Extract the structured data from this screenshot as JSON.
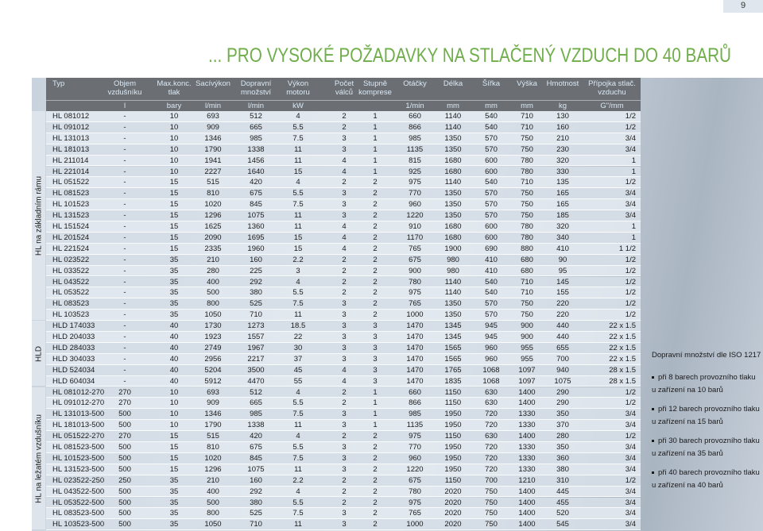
{
  "header": {
    "page_number": "9",
    "title": "... PRO VYSOKÉ POŽADAVKY NA STLAČENÝ VZDUCH DO 40 BARŮ"
  },
  "table": {
    "columns": [
      {
        "name": [
          "Typ"
        ]
      },
      {
        "name": [
          "Objem",
          "vzdušníku"
        ],
        "unit": "l"
      },
      {
        "name": [
          "Max.konc.",
          "tlak"
        ],
        "unit": "bary"
      },
      {
        "name": [
          "Sacívýkon"
        ],
        "unit": "l/min"
      },
      {
        "name": [
          "Dopravní",
          "množství"
        ],
        "unit": "l/min"
      },
      {
        "name": [
          "Výkon",
          "motoru"
        ],
        "unit": "kW"
      },
      {
        "name": [
          "Počet",
          "válců"
        ]
      },
      {
        "name": [
          "Stupně",
          "komprese"
        ]
      },
      {
        "name": [
          "Otáčky"
        ],
        "unit": "1/min"
      },
      {
        "name": [
          "Délka"
        ],
        "unit": "mm"
      },
      {
        "name": [
          "Šířka"
        ],
        "unit": "mm"
      },
      {
        "name": [
          "Výška"
        ],
        "unit": "mm"
      },
      {
        "name": [
          "Hmotnost"
        ],
        "unit": "kg"
      },
      {
        "name": [
          "Přípojka stlač.",
          "vzduchu"
        ],
        "unit": "G\"/mm"
      }
    ],
    "groups": [
      {
        "label": "HL na základním rámu",
        "rows": [
          [
            "HL 081012",
            "-",
            "10",
            "693",
            "512",
            "4",
            "2",
            "1",
            "660",
            "1140",
            "540",
            "710",
            "130",
            "1/2"
          ],
          [
            "HL 091012",
            "-",
            "10",
            "909",
            "665",
            "5.5",
            "2",
            "1",
            "866",
            "1140",
            "540",
            "710",
            "160",
            "1/2"
          ],
          [
            "HL 131013",
            "-",
            "10",
            "1346",
            "985",
            "7.5",
            "3",
            "1",
            "985",
            "1350",
            "570",
            "750",
            "210",
            "3/4"
          ],
          [
            "HL 181013",
            "-",
            "10",
            "1790",
            "1338",
            "11",
            "3",
            "1",
            "1135",
            "1350",
            "570",
            "750",
            "230",
            "3/4"
          ],
          [
            "HL 211014",
            "-",
            "10",
            "1941",
            "1456",
            "11",
            "4",
            "1",
            "815",
            "1680",
            "600",
            "780",
            "320",
            "1"
          ],
          [
            "HL 221014",
            "-",
            "10",
            "2227",
            "1640",
            "15",
            "4",
            "1",
            "925",
            "1680",
            "600",
            "780",
            "330",
            "1"
          ],
          [
            "HL 051522",
            "-",
            "15",
            "515",
            "420",
            "4",
            "2",
            "2",
            "975",
            "1140",
            "540",
            "710",
            "135",
            "1/2"
          ],
          [
            "HL 081523",
            "-",
            "15",
            "810",
            "675",
            "5.5",
            "3",
            "2",
            "770",
            "1350",
            "570",
            "750",
            "165",
            "3/4"
          ],
          [
            "HL 101523",
            "-",
            "15",
            "1020",
            "845",
            "7.5",
            "3",
            "2",
            "960",
            "1350",
            "570",
            "750",
            "165",
            "3/4"
          ],
          [
            "HL 131523",
            "-",
            "15",
            "1296",
            "1075",
            "11",
            "3",
            "2",
            "1220",
            "1350",
            "570",
            "750",
            "185",
            "3/4"
          ],
          [
            "HL 151524",
            "-",
            "15",
            "1625",
            "1360",
            "11",
            "4",
            "2",
            "910",
            "1680",
            "600",
            "780",
            "320",
            "1"
          ],
          [
            "HL 201524",
            "-",
            "15",
            "2090",
            "1695",
            "15",
            "4",
            "2",
            "1170",
            "1680",
            "600",
            "780",
            "340",
            "1"
          ],
          [
            "HL 221524",
            "-",
            "15",
            "2335",
            "1960",
            "15",
            "4",
            "2",
            "765",
            "1900",
            "690",
            "880",
            "410",
            "1 1/2"
          ],
          [
            "HL 023522",
            "-",
            "35",
            "210",
            "160",
            "2.2",
            "2",
            "2",
            "675",
            "980",
            "410",
            "680",
            "90",
            "1/2"
          ],
          [
            "HL 033522",
            "-",
            "35",
            "280",
            "225",
            "3",
            "2",
            "2",
            "900",
            "980",
            "410",
            "680",
            "95",
            "1/2"
          ],
          [
            "HL 043522",
            "-",
            "35",
            "400",
            "292",
            "4",
            "2",
            "2",
            "780",
            "1140",
            "540",
            "710",
            "145",
            "1/2"
          ],
          [
            "HL 053522",
            "-",
            "35",
            "500",
            "380",
            "5.5",
            "2",
            "2",
            "975",
            "1140",
            "540",
            "710",
            "155",
            "1/2"
          ],
          [
            "HL 083523",
            "-",
            "35",
            "800",
            "525",
            "7.5",
            "3",
            "2",
            "765",
            "1350",
            "570",
            "750",
            "220",
            "1/2"
          ],
          [
            "HL 103523",
            "-",
            "35",
            "1050",
            "710",
            "11",
            "3",
            "2",
            "1000",
            "1350",
            "570",
            "750",
            "220",
            "1/2"
          ]
        ]
      },
      {
        "label": "HLD",
        "rows": [
          [
            "HLD 174033",
            "-",
            "40",
            "1730",
            "1273",
            "18.5",
            "3",
            "3",
            "1470",
            "1345",
            "945",
            "900",
            "440",
            "22 x 1.5"
          ],
          [
            "HLD 204033",
            "-",
            "40",
            "1923",
            "1557",
            "22",
            "3",
            "3",
            "1470",
            "1345",
            "945",
            "900",
            "440",
            "22 x 1.5"
          ],
          [
            "HLD 284033",
            "-",
            "40",
            "2749",
            "1967",
            "30",
            "3",
            "3",
            "1470",
            "1565",
            "960",
            "955",
            "655",
            "22 x 1.5"
          ],
          [
            "HLD 304033",
            "-",
            "40",
            "2956",
            "2217",
            "37",
            "3",
            "3",
            "1470",
            "1565",
            "960",
            "955",
            "700",
            "22 x 1.5"
          ],
          [
            "HLD 524034",
            "-",
            "40",
            "5204",
            "3500",
            "45",
            "4",
            "3",
            "1470",
            "1765",
            "1068",
            "1097",
            "940",
            "28 x 1.5"
          ],
          [
            "HLD 604034",
            "-",
            "40",
            "5912",
            "4470",
            "55",
            "4",
            "3",
            "1470",
            "1835",
            "1068",
            "1097",
            "1075",
            "28 x 1.5"
          ]
        ]
      },
      {
        "label": "HL na ležatém vzdušníku",
        "rows": [
          [
            "HL 081012-270",
            "270",
            "10",
            "693",
            "512",
            "4",
            "2",
            "1",
            "660",
            "1150",
            "630",
            "1400",
            "290",
            "1/2"
          ],
          [
            "HL 091012-270",
            "270",
            "10",
            "909",
            "665",
            "5.5",
            "2",
            "1",
            "866",
            "1150",
            "630",
            "1400",
            "290",
            "1/2"
          ],
          [
            "HL 131013-500",
            "500",
            "10",
            "1346",
            "985",
            "7.5",
            "3",
            "1",
            "985",
            "1950",
            "720",
            "1330",
            "350",
            "3/4"
          ],
          [
            "HL 181013-500",
            "500",
            "10",
            "1790",
            "1338",
            "11",
            "3",
            "1",
            "1135",
            "1950",
            "720",
            "1330",
            "370",
            "3/4"
          ],
          [
            "HL 051522-270",
            "270",
            "15",
            "515",
            "420",
            "4",
            "2",
            "2",
            "975",
            "1150",
            "630",
            "1400",
            "280",
            "1/2"
          ],
          [
            "HL 081523-500",
            "500",
            "15",
            "810",
            "675",
            "5.5",
            "3",
            "2",
            "770",
            "1950",
            "720",
            "1330",
            "350",
            "3/4"
          ],
          [
            "HL 101523-500",
            "500",
            "15",
            "1020",
            "845",
            "7.5",
            "3",
            "2",
            "960",
            "1950",
            "720",
            "1330",
            "360",
            "3/4"
          ],
          [
            "HL 131523-500",
            "500",
            "15",
            "1296",
            "1075",
            "11",
            "3",
            "2",
            "1220",
            "1950",
            "720",
            "1330",
            "380",
            "3/4"
          ],
          [
            "HL 023522-250",
            "250",
            "35",
            "210",
            "160",
            "2.2",
            "2",
            "2",
            "675",
            "1150",
            "700",
            "1210",
            "310",
            "1/2"
          ],
          [
            "HL 043522-500",
            "500",
            "35",
            "400",
            "292",
            "4",
            "2",
            "2",
            "780",
            "2020",
            "750",
            "1400",
            "445",
            "3/4"
          ],
          [
            "HL 053522-500",
            "500",
            "35",
            "500",
            "380",
            "5.5",
            "2",
            "2",
            "975",
            "2020",
            "750",
            "1400",
            "455",
            "3/4"
          ],
          [
            "HL 083523-500",
            "500",
            "35",
            "800",
            "525",
            "7.5",
            "3",
            "2",
            "765",
            "2020",
            "750",
            "1400",
            "520",
            "3/4"
          ],
          [
            "HL 103523-500",
            "500",
            "35",
            "1050",
            "710",
            "11",
            "3",
            "2",
            "1000",
            "2020",
            "750",
            "1400",
            "545",
            "3/4"
          ]
        ]
      }
    ]
  },
  "notes": {
    "title": "Dopravní množství dle ISO 1217",
    "items": [
      [
        "při 8 barech provozního tlaku",
        "u zařízení na 10 barů"
      ],
      [
        "při 12 barech provozního tlaku",
        "u zařízení na 15 barů"
      ],
      [
        "při 30 barech provozního tlaku",
        "u zařízení na 35 barů"
      ],
      [
        "při 40 barech provozního tlaku",
        "u zařízení na 40 barů"
      ]
    ]
  }
}
